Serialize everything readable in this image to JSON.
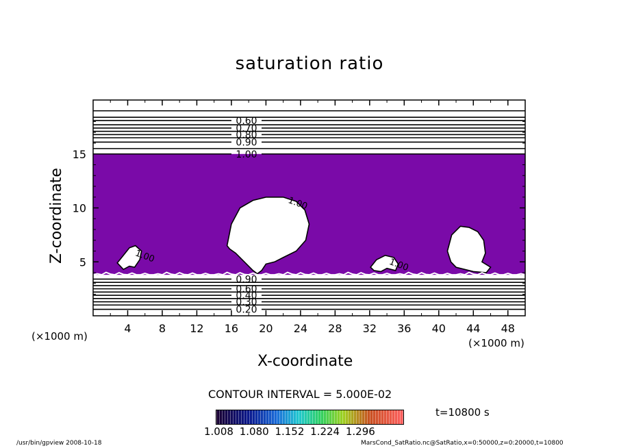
{
  "chart_data": {
    "type": "heatmap",
    "title": "saturation ratio",
    "xlabel": "X-coordinate",
    "ylabel": "Z-coordinate",
    "x_unit": "(×1000 m)",
    "y_unit": "(×1000 m)",
    "xlim": [
      0,
      50
    ],
    "ylim": [
      0,
      20
    ],
    "x_ticks": [
      "4",
      "8",
      "12",
      "16",
      "20",
      "24",
      "28",
      "32",
      "36",
      "40",
      "44",
      "48"
    ],
    "y_ticks": [
      "5",
      "10",
      "15"
    ],
    "fill_color": "#7a0aa8",
    "fill_region": {
      "z_bottom": 3.8,
      "z_top": 15
    },
    "upper_contours": [
      {
        "z": 19.0,
        "label": ""
      },
      {
        "z": 18.4,
        "label": ""
      },
      {
        "z": 18.1,
        "label": "0.60"
      },
      {
        "z": 17.7,
        "label": ""
      },
      {
        "z": 17.4,
        "label": "0.70"
      },
      {
        "z": 17.1,
        "label": ""
      },
      {
        "z": 16.8,
        "label": "0.80"
      },
      {
        "z": 16.5,
        "label": ""
      },
      {
        "z": 16.1,
        "label": "0.90"
      },
      {
        "z": 15.5,
        "label": ""
      },
      {
        "z": 15.0,
        "label": "1.00"
      }
    ],
    "lower_contours": [
      {
        "z": 3.4,
        "label": "0.90"
      },
      {
        "z": 3.1,
        "label": ""
      },
      {
        "z": 2.8,
        "label": ""
      },
      {
        "z": 2.5,
        "label": "0.60"
      },
      {
        "z": 2.2,
        "label": ""
      },
      {
        "z": 1.9,
        "label": "0.40"
      },
      {
        "z": 1.6,
        "label": ""
      },
      {
        "z": 1.3,
        "label": "0.30"
      },
      {
        "z": 1.0,
        "label": ""
      },
      {
        "z": 0.6,
        "label": "0.20"
      }
    ],
    "unsaturated_regions": [
      {
        "x": [
          15.5,
          16,
          17,
          18.5,
          20,
          22,
          23.5,
          24.5,
          25,
          24.6,
          23.5,
          22,
          21,
          20,
          19.5,
          19,
          18.5,
          17.5,
          16.5,
          15.8,
          15.5
        ],
        "z": [
          6.5,
          8.5,
          10,
          10.7,
          11,
          11,
          10.6,
          9.8,
          8.5,
          7,
          6,
          5.4,
          5,
          4.8,
          4.2,
          3.9,
          4.2,
          5,
          5.8,
          6.2,
          6.5
        ],
        "label": "1.00",
        "label_at": [
          22.5,
          10.5
        ]
      },
      {
        "x": [
          41,
          41.5,
          42.5,
          43.5,
          44.5,
          45.2,
          45.4,
          45,
          46,
          45.5,
          44,
          43,
          42,
          41.4,
          41
        ],
        "z": [
          6,
          7.5,
          8.3,
          8.2,
          7.8,
          7,
          5.8,
          5,
          4.5,
          4,
          4.1,
          4.3,
          4.5,
          5,
          6
        ],
        "label": "",
        "label_at": null
      },
      {
        "x": [
          2.8,
          3.4,
          4.2,
          4.9,
          5.6,
          5.4,
          4.8,
          4.2,
          3.5,
          2.8
        ],
        "z": [
          4.9,
          5.5,
          6.3,
          6.5,
          6,
          5.2,
          4.5,
          4.6,
          4.3,
          4.9
        ],
        "label": "1.00",
        "label_at": [
          4.8,
          5.6
        ]
      },
      {
        "x": [
          32.1,
          32.8,
          33.8,
          34.8,
          35.3,
          35,
          34,
          33.3,
          32.5,
          32.1
        ],
        "z": [
          4.5,
          5.2,
          5.6,
          5.4,
          4.8,
          4.2,
          4.4,
          4.1,
          4.2,
          4.5
        ],
        "label": "1.00",
        "label_at": [
          34.2,
          4.8
        ]
      }
    ],
    "contour_interval_text": "CONTOUR INTERVAL = 5.000E-02",
    "colorbar_ticks": [
      "1.008",
      "1.080",
      "1.152",
      "1.224",
      "1.296"
    ],
    "time_text": "t=10800  s"
  },
  "footer": {
    "left": "/usr/bin/gpview   2008-10-18",
    "right": "MarsCond_SatRatio.nc@SatRatio,x=0:50000,z=0:20000,t=10800"
  }
}
